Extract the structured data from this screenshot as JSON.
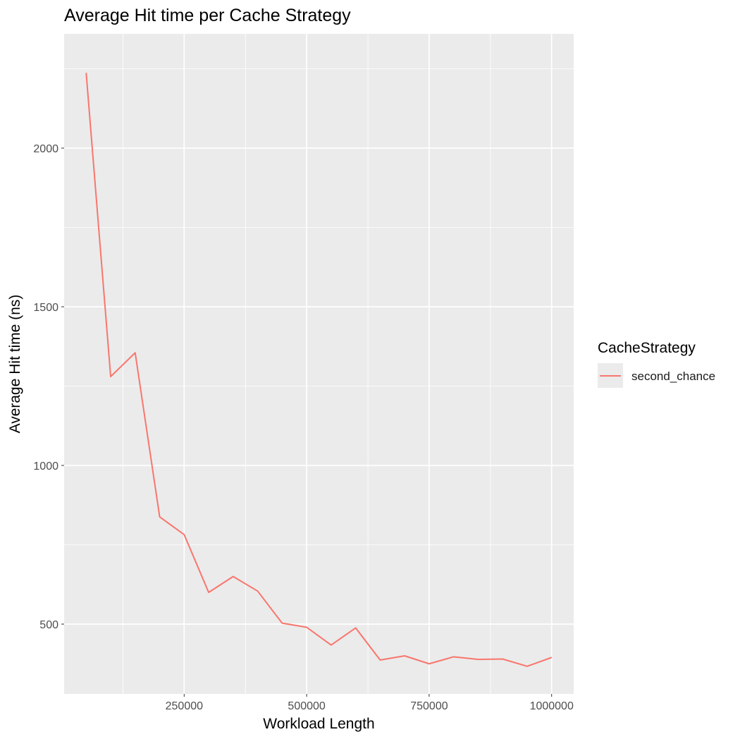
{
  "chart_data": {
    "type": "line",
    "title": "Average Hit time per Cache Strategy",
    "xlabel": "Workload Length",
    "ylabel": "Average Hit time (ns)",
    "xlim": [
      5000,
      1045000
    ],
    "ylim": [
      280,
      2360
    ],
    "x_ticks": [
      250000,
      500000,
      750000,
      1000000
    ],
    "x_tick_labels": [
      "250000",
      "500000",
      "750000",
      "1000000"
    ],
    "y_ticks": [
      500,
      1000,
      1500,
      2000
    ],
    "y_tick_labels": [
      "500",
      "1000",
      "1500",
      "2000"
    ],
    "grid": true,
    "legend": {
      "title": "CacheStrategy",
      "position": "right"
    },
    "series": [
      {
        "name": "second_chance",
        "color": "#F8766D",
        "x": [
          50000,
          100000,
          150000,
          200000,
          250000,
          300000,
          350000,
          400000,
          450000,
          500000,
          550000,
          600000,
          650000,
          700000,
          750000,
          800000,
          850000,
          900000,
          950000,
          1000000
        ],
        "y": [
          2237,
          1280,
          1355,
          838,
          782,
          600,
          650,
          604,
          503,
          490,
          434,
          488,
          387,
          400,
          375,
          397,
          389,
          390,
          367,
          395
        ]
      }
    ]
  }
}
